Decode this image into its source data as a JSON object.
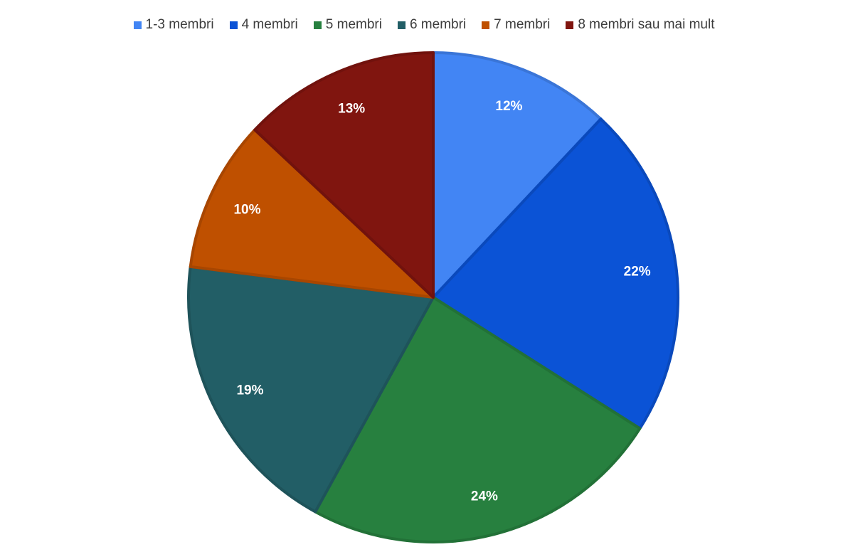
{
  "chart_data": {
    "type": "pie",
    "title": "",
    "legend_position": "top",
    "slices": [
      {
        "label": "1-3 membri",
        "value": 12,
        "display": "12%",
        "color": "#4285f4"
      },
      {
        "label": "4 membri",
        "value": 22,
        "display": "22%",
        "color": "#0b53d6"
      },
      {
        "label": "5 membri",
        "value": 24,
        "display": "24%",
        "color": "#27803f"
      },
      {
        "label": "6 membri",
        "value": 19,
        "display": "19%",
        "color": "#225e66"
      },
      {
        "label": "7 membri",
        "value": 10,
        "display": "10%",
        "color": "#bf5000"
      },
      {
        "label": "8 membri sau mai mult",
        "value": 13,
        "display": "13%",
        "color": "#80150f"
      }
    ]
  }
}
